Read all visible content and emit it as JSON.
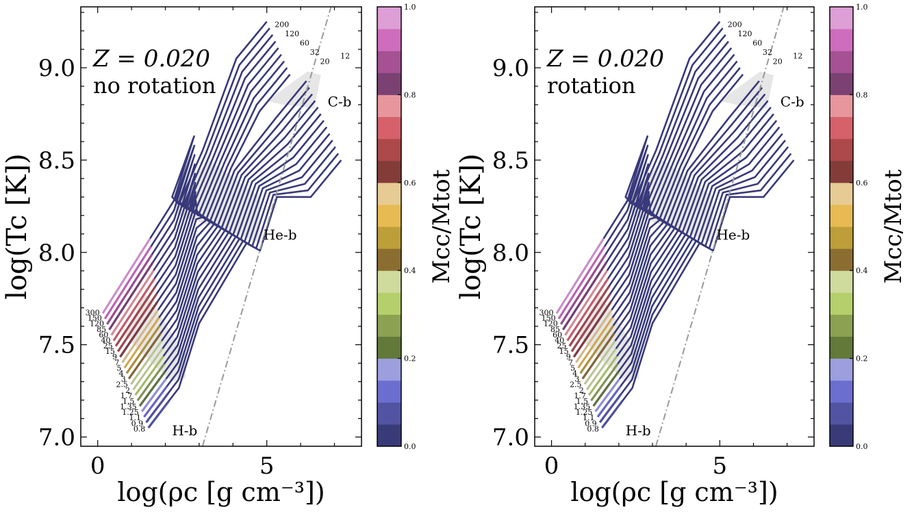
{
  "chart_data": [
    {
      "type": "line",
      "annotation": "Z = 0.020",
      "variant": "no rotation",
      "xlabel": "log(ρc [g cm⁻³])",
      "ylabel": "log(Tc [K])",
      "xlim": [
        -0.5,
        7.8
      ],
      "ylim": [
        6.95,
        9.33
      ],
      "xticks": [
        "0",
        "5"
      ],
      "yticks": [
        "7.0",
        "7.5",
        "8.0",
        "8.5",
        "9.0"
      ],
      "region_labels": [
        "H-b",
        "He-b",
        "C-b"
      ],
      "mass_labels": [
        "0.8",
        "0.9",
        "1.1",
        "1.25",
        "1.35",
        "1.5",
        "1.7",
        "2",
        "2.5",
        "3",
        "4",
        "5",
        "7",
        "9",
        "15",
        "25",
        "40",
        "60",
        "85",
        "120",
        "150",
        "300",
        "200",
        "120",
        "60",
        "32",
        "20",
        "12"
      ],
      "ignition_line": {
        "x": [
          3.1,
          6.9
        ],
        "y": [
          6.95,
          9.33
        ],
        "style": "dash-dot",
        "color": "#999999"
      },
      "series_color": "#38397a"
    },
    {
      "type": "line",
      "annotation": "Z = 0.020",
      "variant": "rotation",
      "xlabel": "log(ρc [g cm⁻³])",
      "ylabel": "log(Tc [K])",
      "xlim": [
        -0.5,
        7.8
      ],
      "ylim": [
        6.95,
        9.33
      ],
      "xticks": [
        "0",
        "5"
      ],
      "yticks": [
        "7.0",
        "7.5",
        "8.0",
        "8.5",
        "9.0"
      ],
      "region_labels": [
        "H-b",
        "He-b",
        "C-b"
      ],
      "mass_labels": [
        "0.8",
        "0.9",
        "1.1",
        "1.25",
        "1.35",
        "1.5",
        "1.7",
        "2",
        "2.5",
        "3",
        "4",
        "5",
        "7",
        "9",
        "15",
        "25",
        "40",
        "60",
        "85",
        "120",
        "150",
        "300",
        "200",
        "120",
        "60",
        "32",
        "20",
        "12"
      ],
      "ignition_line": {
        "x": [
          3.1,
          6.9
        ],
        "y": [
          6.95,
          9.33
        ],
        "style": "dash-dot",
        "color": "#999999"
      },
      "series_color": "#38397a"
    }
  ],
  "colorbar": {
    "label": "Mcc/Mtot",
    "ticks": [
      "0.0",
      "0.2",
      "0.4",
      "0.6",
      "0.8",
      "1.0"
    ],
    "range": [
      0,
      1
    ],
    "colors": [
      "#393b79",
      "#5254a3",
      "#6b6ecf",
      "#9c9ede",
      "#637939",
      "#8ca252",
      "#b5cf6b",
      "#cedb9c",
      "#8c6d31",
      "#bd9e39",
      "#e7ba52",
      "#e7cb94",
      "#843c39",
      "#ad494a",
      "#d6616b",
      "#e7969c",
      "#7b4173",
      "#a55194",
      "#ce6dbd",
      "#de9ed6"
    ]
  }
}
